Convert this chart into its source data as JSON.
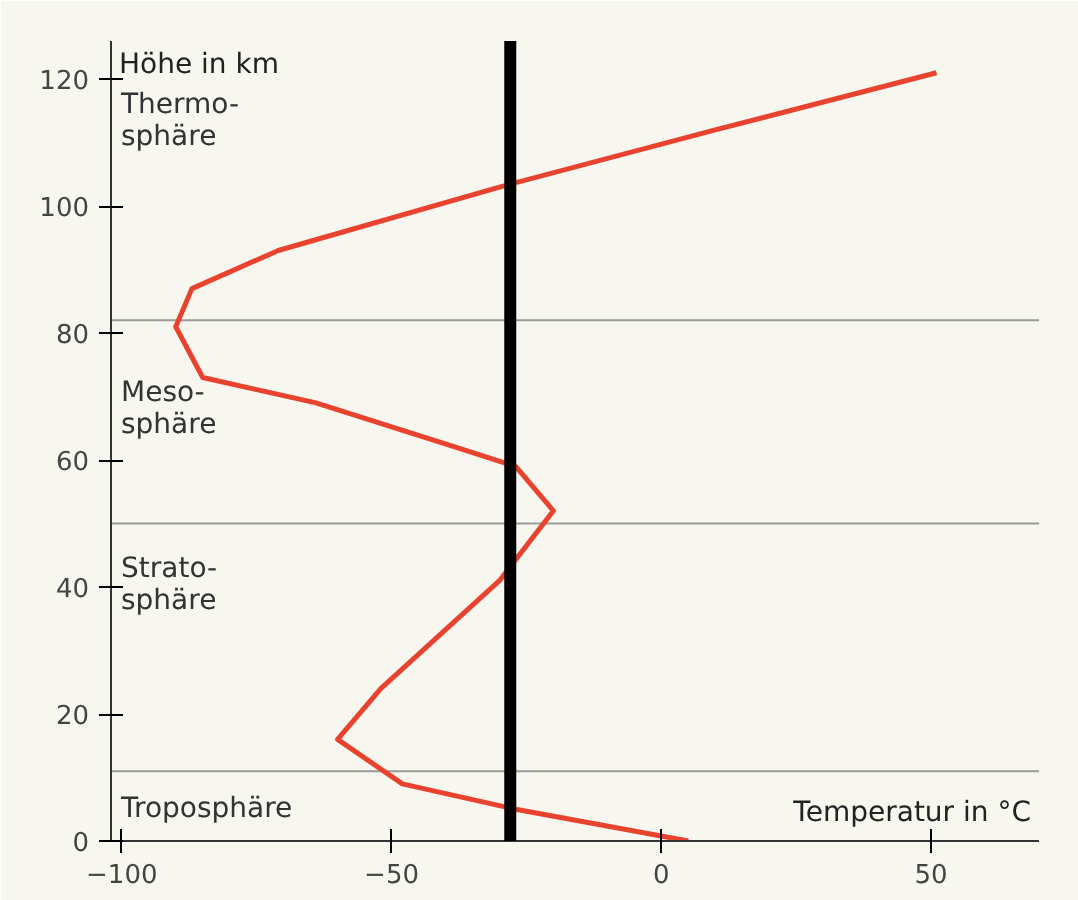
{
  "chart_data": {
    "type": "line",
    "xlabel": "Temperatur in °C",
    "ylabel": "Höhe in km",
    "x": [
      5,
      -27,
      -48,
      -60,
      -52,
      -30,
      -20,
      -27,
      -38,
      -64,
      -85,
      -90,
      -87,
      -71,
      -30,
      10,
      51
    ],
    "series": [
      {
        "color": "#e8432f",
        "values": [
          0,
          5,
          9,
          16,
          24,
          41,
          52,
          59,
          62,
          69,
          73,
          81,
          87,
          93,
          103,
          112,
          121
        ]
      }
    ],
    "xlim": [
      -102,
      70
    ],
    "ylim": [
      0,
      126
    ],
    "xticks": [
      -100,
      -50,
      0,
      50
    ],
    "yticks": [
      0,
      20,
      40,
      60,
      80,
      100,
      120
    ],
    "ref_lines": [
      {
        "axis": "x",
        "value": -28,
        "color": "#000000"
      },
      {
        "axis": "y",
        "value": 82,
        "color": "#9a9a9a"
      },
      {
        "axis": "y",
        "value": 50,
        "color": "#9a9a9a"
      },
      {
        "axis": "y",
        "value": 11,
        "color": "#9a9a9a"
      }
    ],
    "annotations": [
      "Thermo-\nsphäre",
      "Meso-\nsphäre",
      "Strato-\nsphäre",
      "Troposphäre"
    ],
    "grid": false,
    "marker": "none",
    "line_style": "solid"
  }
}
